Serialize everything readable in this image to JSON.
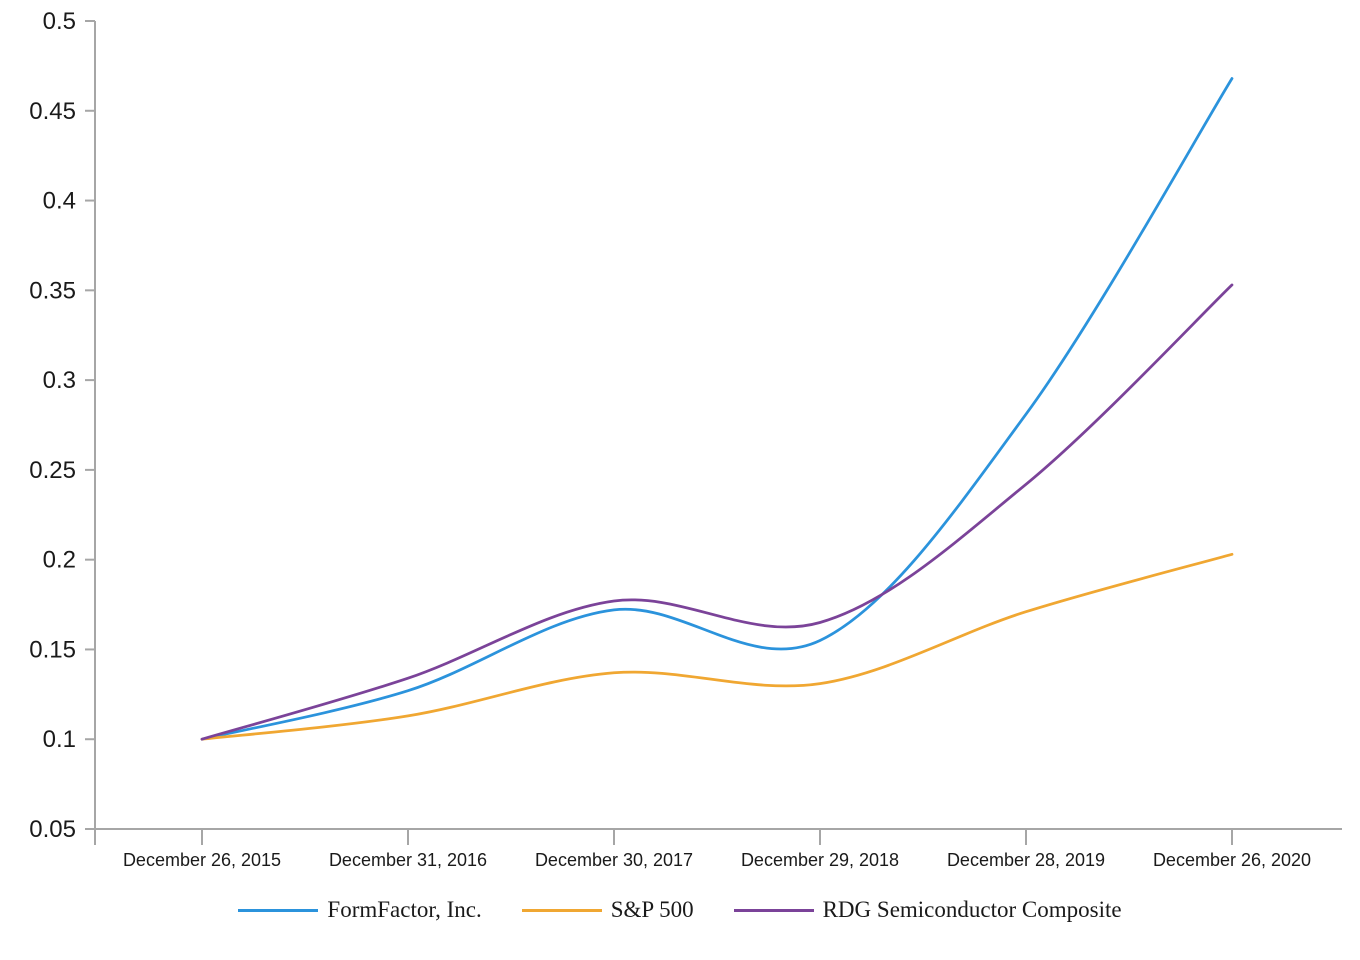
{
  "chart_data": {
    "type": "line",
    "title": "",
    "xlabel": "",
    "ylabel": "",
    "grid": false,
    "legend_position": "bottom",
    "axis_color": "#a6a6a6",
    "label_color": "#1a1a1a",
    "background_color": "#ffffff",
    "x_categories": [
      "December 26, 2015",
      "December 31, 2016",
      "December 30, 2017",
      "December 29, 2018",
      "December 28, 2019",
      "December 26, 2020"
    ],
    "y_axis": {
      "min": 0.05,
      "max": 0.5,
      "tick_step": 0.05,
      "tick_labels": [
        "0.05",
        "0.1",
        "0.15",
        "0.2",
        "0.25",
        "0.3",
        "0.35",
        "0.4",
        "0.45",
        "0.5"
      ]
    },
    "series": [
      {
        "name": "FormFactor, Inc.",
        "slug": "formfactor",
        "color": "#2b93dc",
        "values": [
          0.1,
          0.127,
          0.172,
          0.155,
          0.281,
          0.468
        ]
      },
      {
        "name": "S&P 500",
        "slug": "sp500",
        "color": "#f0a732",
        "values": [
          0.1,
          0.113,
          0.137,
          0.131,
          0.171,
          0.203
        ]
      },
      {
        "name": "RDG Semiconductor Composite",
        "slug": "rdg-semiconductor-composite",
        "color": "#7b4399",
        "values": [
          0.1,
          0.134,
          0.177,
          0.165,
          0.242,
          0.353
        ]
      }
    ]
  }
}
